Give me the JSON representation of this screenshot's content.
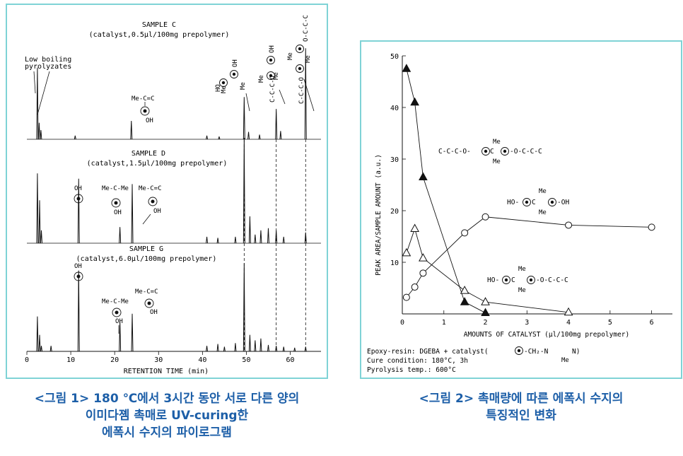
{
  "figure1": {
    "xlabel": "RETENTION TIME (min)",
    "annotation_low_boiling": [
      "Low boiling",
      "pyrolyzates"
    ],
    "struct_labels": {
      "me_c_c": "Me-C=C",
      "me_c_me": "Me-C-Me",
      "oh": "OH",
      "ho": "HO",
      "me": "Me",
      "c_c_c_o": "C-C-C-O",
      "o_c_c_c": "O-C-C-C"
    },
    "chart_data": [
      {
        "type": "line",
        "title": "SAMPLE C",
        "subtitle": "(catalyst,0.5μl/100mg prepolymer)",
        "xlim": [
          0,
          67
        ],
        "xticks": [
          0,
          10,
          20,
          30,
          40,
          50,
          60
        ],
        "peaks": [
          {
            "x": 2.4,
            "h": 0.78
          },
          {
            "x": 2.8,
            "h": 0.18
          },
          {
            "x": 3.2,
            "h": 0.1
          },
          {
            "x": 11,
            "h": 0.04
          },
          {
            "x": 23.8,
            "h": 0.2
          },
          {
            "x": 41,
            "h": 0.04
          },
          {
            "x": 43.8,
            "h": 0.03
          },
          {
            "x": 49.5,
            "h": 0.46
          },
          {
            "x": 50.5,
            "h": 0.08
          },
          {
            "x": 53,
            "h": 0.05
          },
          {
            "x": 56.8,
            "h": 0.33
          },
          {
            "x": 57.8,
            "h": 0.09
          },
          {
            "x": 63.5,
            "h": 0.99
          }
        ]
      },
      {
        "type": "line",
        "title": "SAMPLE D",
        "subtitle": "(catalyst,1.5μl/100mg prepolymer)",
        "xlim": [
          0,
          67
        ],
        "peaks": [
          {
            "x": 2.4,
            "h": 0.65
          },
          {
            "x": 2.9,
            "h": 0.4
          },
          {
            "x": 3.3,
            "h": 0.12
          },
          {
            "x": 11.8,
            "h": 0.6
          },
          {
            "x": 21.2,
            "h": 0.15
          },
          {
            "x": 24,
            "h": 0.55
          },
          {
            "x": 41,
            "h": 0.06
          },
          {
            "x": 43.5,
            "h": 0.05
          },
          {
            "x": 47.5,
            "h": 0.06
          },
          {
            "x": 49.5,
            "h": 0.98
          },
          {
            "x": 50.8,
            "h": 0.25
          },
          {
            "x": 52,
            "h": 0.08
          },
          {
            "x": 53.3,
            "h": 0.12
          },
          {
            "x": 55,
            "h": 0.14
          },
          {
            "x": 56.8,
            "h": 0.12
          },
          {
            "x": 58.5,
            "h": 0.06
          },
          {
            "x": 63.5,
            "h": 0.1
          }
        ]
      },
      {
        "type": "line",
        "title": "SAMPLE G",
        "subtitle": "(catalyst,6.0μl/100mg prepolymer)",
        "xlim": [
          0,
          67
        ],
        "peaks": [
          {
            "x": 2.4,
            "h": 0.38
          },
          {
            "x": 2.9,
            "h": 0.18
          },
          {
            "x": 3.3,
            "h": 0.06
          },
          {
            "x": 5.5,
            "h": 0.06
          },
          {
            "x": 11.8,
            "h": 0.88
          },
          {
            "x": 21.2,
            "h": 0.33
          },
          {
            "x": 24,
            "h": 0.41
          },
          {
            "x": 41,
            "h": 0.06
          },
          {
            "x": 43.5,
            "h": 0.08
          },
          {
            "x": 45,
            "h": 0.05
          },
          {
            "x": 47.5,
            "h": 0.09
          },
          {
            "x": 49.5,
            "h": 0.96
          },
          {
            "x": 50.8,
            "h": 0.18
          },
          {
            "x": 52,
            "h": 0.12
          },
          {
            "x": 53.3,
            "h": 0.14
          },
          {
            "x": 55,
            "h": 0.07
          },
          {
            "x": 56.8,
            "h": 0.06
          },
          {
            "x": 58.5,
            "h": 0.05
          },
          {
            "x": 61,
            "h": 0.04
          },
          {
            "x": 63.5,
            "h": 0.05
          }
        ]
      }
    ],
    "dashed_guides_x": [
      49.5,
      56.8,
      63.5
    ]
  },
  "figure2": {
    "chart_data": {
      "type": "line",
      "xlabel": "AMOUNTS OF CATALYST (μl/100mg prepolymer)",
      "ylabel": "PEAK AREA/SAMPLE AMOUNT (a.u.)",
      "xlim": [
        0,
        6.5
      ],
      "ylim": [
        0,
        50
      ],
      "xticks": [
        0,
        1,
        2,
        3,
        4,
        5,
        6
      ],
      "yticks": [
        10,
        20,
        30,
        40,
        50
      ],
      "series": [
        {
          "marker": "filled-triangle",
          "x": [
            0.1,
            0.3,
            0.5,
            1.5,
            2.0
          ],
          "y": [
            47.5,
            41,
            26.5,
            2.3,
            0.2
          ]
        },
        {
          "marker": "open-triangle",
          "x": [
            0.1,
            0.3,
            0.5,
            1.5,
            2.0,
            4.0
          ],
          "y": [
            11.8,
            16.5,
            10.8,
            4.5,
            2.3,
            0.3
          ]
        },
        {
          "marker": "open-circle",
          "x": [
            0.1,
            0.3,
            0.5,
            1.5,
            2.0,
            4.0,
            6.0
          ],
          "y": [
            3.2,
            5.2,
            7.9,
            15.7,
            18.8,
            17.2,
            16.8
          ]
        }
      ]
    },
    "struct_labels": {
      "epoxy_left": "C-C-C-O-",
      "epoxy_right": "-O-C-C-C",
      "me": "Me",
      "ho": "HO-",
      "oh": "-OH",
      "c": "C",
      "o": "O"
    },
    "conditions": {
      "resin": "Epoxy-resin: DGEBA + catalyst(",
      "resin_tail": "-CH₂-N",
      "resin_n": "N)",
      "resin_me": "Me",
      "cure": "Cure condition: 180°C, 3h",
      "pyro": "Pyrolysis temp.: 600°C"
    }
  },
  "captions": {
    "figure1": [
      "<그림 1> 180 ℃에서 3시간 동안 서로 다른 양의",
      "이미다졤 촉매로 UV-curing한",
      "에폭시 수지의 파이로그램"
    ],
    "figure2": [
      "<그림 2> 촉매량에 따른 에폭시 수지의",
      "특징적인 변화"
    ]
  }
}
